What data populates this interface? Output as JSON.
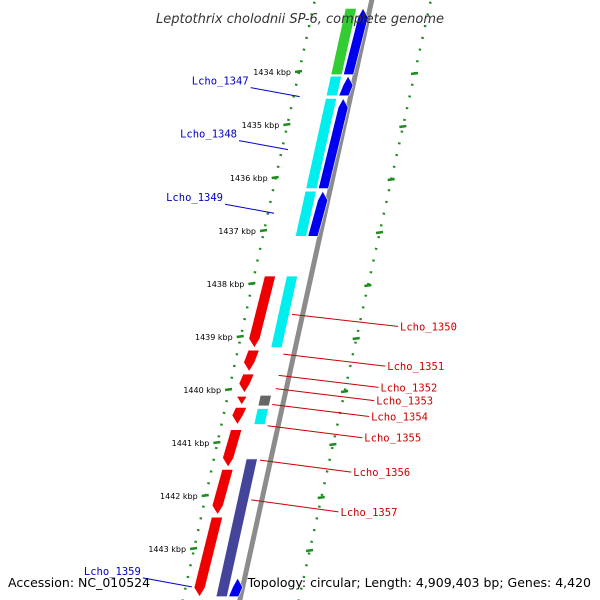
{
  "title": "Leptothrix cholodnii SP-6, complete genome",
  "footer": {
    "accession": "Accession: NC_010524",
    "summary": "Topology: circular; Length: 4,909,403 bp; Genes: 4,420"
  },
  "colors": {
    "backbone": "#8c8c8c",
    "tick": "#1e8c1e",
    "forward_label": "#0000cc",
    "reverse_label": "#cc0000",
    "gene_blue": "#0000ee",
    "gene_cyan": "#00eeee",
    "gene_green": "#33cc33",
    "gene_red": "#ee0000",
    "gene_purple": "#44449a",
    "gene_gray": "#666666"
  },
  "scale": {
    "ticks": [
      {
        "kbp": 1434,
        "label": "1434 kbp"
      },
      {
        "kbp": 1435,
        "label": "1435 kbp"
      },
      {
        "kbp": 1436,
        "label": "1436 kbp"
      },
      {
        "kbp": 1437,
        "label": "1437 kbp"
      },
      {
        "kbp": 1438,
        "label": "1438 kbp"
      },
      {
        "kbp": 1439,
        "label": "1439 kbp"
      },
      {
        "kbp": 1440,
        "label": "1440 kbp"
      },
      {
        "kbp": 1441,
        "label": "1441 kbp"
      },
      {
        "kbp": 1442,
        "label": "1442 kbp"
      },
      {
        "kbp": 1443,
        "label": "1443 kbp"
      }
    ]
  },
  "labels": [
    {
      "name": "Lcho_1347",
      "side": "left",
      "kbp": 1434.2
    },
    {
      "name": "Lcho_1348",
      "side": "left",
      "kbp": 1435.2
    },
    {
      "name": "Lcho_1349",
      "side": "left",
      "kbp": 1436.4
    },
    {
      "name": "Lcho_1350",
      "side": "right",
      "kbp": 1438.8
    },
    {
      "name": "Lcho_1351",
      "side": "right",
      "kbp": 1439.55
    },
    {
      "name": "Lcho_1352",
      "side": "right",
      "kbp": 1439.95
    },
    {
      "name": "Lcho_1353",
      "side": "right",
      "kbp": 1440.2
    },
    {
      "name": "Lcho_1354",
      "side": "right",
      "kbp": 1440.5
    },
    {
      "name": "Lcho_1355",
      "side": "right",
      "kbp": 1440.9
    },
    {
      "name": "Lcho_1356",
      "side": "right",
      "kbp": 1441.55
    },
    {
      "name": "Lcho_1357",
      "side": "right",
      "kbp": 1442.3
    },
    {
      "name": "Lcho_1359",
      "side": "left",
      "kbp": 1443.45
    }
  ],
  "genes": [
    {
      "track": "forward",
      "start": 1432.8,
      "end": 1434.05,
      "color": "blue",
      "dir": "up"
    },
    {
      "track": "forward",
      "start": 1434.08,
      "end": 1434.45,
      "color": "blue",
      "dir": "up"
    },
    {
      "track": "forward",
      "start": 1434.5,
      "end": 1436.2,
      "color": "blue",
      "dir": "up"
    },
    {
      "track": "forward",
      "start": 1436.25,
      "end": 1437.1,
      "color": "blue",
      "dir": "up"
    },
    {
      "track": "cds",
      "start": 1432.8,
      "end": 1434.05,
      "color": "green",
      "dir": "none"
    },
    {
      "track": "cds",
      "start": 1434.08,
      "end": 1434.45,
      "color": "cyan",
      "dir": "none"
    },
    {
      "track": "cds",
      "start": 1434.5,
      "end": 1436.2,
      "color": "cyan",
      "dir": "none"
    },
    {
      "track": "cds",
      "start": 1436.25,
      "end": 1437.1,
      "color": "cyan",
      "dir": "none"
    },
    {
      "track": "reverse",
      "start": 1437.85,
      "end": 1439.2,
      "color": "red",
      "dir": "down"
    },
    {
      "track": "reverse",
      "start": 1439.25,
      "end": 1439.65,
      "color": "red",
      "dir": "down"
    },
    {
      "track": "reverse",
      "start": 1439.7,
      "end": 1440.05,
      "color": "red",
      "dir": "down"
    },
    {
      "track": "reverse",
      "start": 1440.12,
      "end": 1440.28,
      "color": "red",
      "dir": "down"
    },
    {
      "track": "reverse",
      "start": 1440.33,
      "end": 1440.65,
      "color": "red",
      "dir": "down"
    },
    {
      "track": "reverse",
      "start": 1440.75,
      "end": 1441.45,
      "color": "red",
      "dir": "down"
    },
    {
      "track": "reverse",
      "start": 1441.5,
      "end": 1442.35,
      "color": "red",
      "dir": "down"
    },
    {
      "track": "reverse",
      "start": 1442.4,
      "end": 1443.9,
      "color": "red",
      "dir": "down"
    },
    {
      "track": "rcds",
      "start": 1437.85,
      "end": 1439.2,
      "color": "cyan",
      "dir": "none"
    },
    {
      "track": "rcds",
      "start": 1440.1,
      "end": 1440.3,
      "color": "gray",
      "dir": "none"
    },
    {
      "track": "rcds",
      "start": 1440.35,
      "end": 1440.65,
      "color": "cyan",
      "dir": "none"
    },
    {
      "track": "rcds",
      "start": 1441.3,
      "end": 1443.9,
      "color": "purple",
      "dir": "none"
    },
    {
      "track": "forward",
      "start": 1443.55,
      "end": 1443.9,
      "color": "blue",
      "dir": "up"
    }
  ]
}
